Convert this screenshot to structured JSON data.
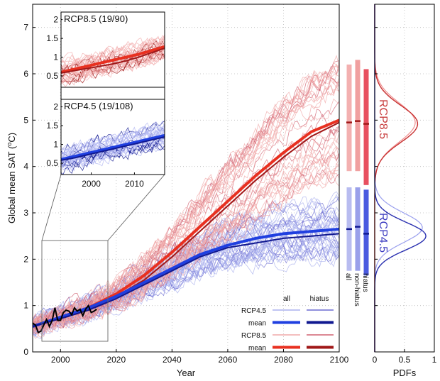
{
  "chart_data": {
    "type": "line",
    "main": {
      "xlabel": "Year",
      "ylabel_prefix": "Global mean SAT (",
      "ylabel_sup": "o",
      "ylabel_suffix": "C)",
      "xlim": [
        1990,
        2100
      ],
      "ylim": [
        0,
        7.5
      ],
      "xticks": [
        2000,
        2020,
        2040,
        2060,
        2080,
        2100
      ],
      "yticks": [
        0,
        1,
        2,
        3,
        4,
        5,
        6,
        7
      ],
      "grid": true,
      "observed": {
        "x": [
          1990,
          1991,
          1992,
          1993,
          1994,
          1995,
          1996,
          1997,
          1998,
          1999,
          2000,
          2001,
          2002,
          2003,
          2004,
          2005,
          2006,
          2007,
          2008,
          2009,
          2010,
          2011,
          2012,
          2013
        ],
        "y": [
          0.62,
          0.58,
          0.42,
          0.45,
          0.58,
          0.7,
          0.55,
          0.68,
          0.95,
          0.68,
          0.68,
          0.85,
          0.9,
          0.88,
          0.8,
          0.95,
          0.88,
          0.92,
          0.78,
          0.92,
          1.0,
          0.85,
          0.88,
          0.92
        ]
      },
      "series": [
        {
          "name": "RCP8.5",
          "stat": "mean",
          "x": [
            1990,
            2000,
            2010,
            2020,
            2030,
            2040,
            2050,
            2060,
            2070,
            2080,
            2090,
            2100
          ],
          "y": [
            0.55,
            0.75,
            0.95,
            1.25,
            1.65,
            2.15,
            2.7,
            3.25,
            3.8,
            4.3,
            4.75,
            5.0
          ]
        },
        {
          "name": "RCP8.5",
          "stat": "hiatus mean",
          "x": [
            1990,
            2000,
            2010,
            2020,
            2030,
            2040,
            2050,
            2060,
            2070,
            2080,
            2090,
            2100
          ],
          "y": [
            0.55,
            0.72,
            0.9,
            1.2,
            1.55,
            2.05,
            2.6,
            3.15,
            3.7,
            4.2,
            4.65,
            4.95
          ]
        },
        {
          "name": "RCP4.5",
          "stat": "mean",
          "x": [
            1990,
            2000,
            2010,
            2020,
            2030,
            2040,
            2050,
            2060,
            2070,
            2080,
            2090,
            2100
          ],
          "y": [
            0.55,
            0.75,
            0.95,
            1.2,
            1.5,
            1.8,
            2.1,
            2.3,
            2.45,
            2.55,
            2.6,
            2.65
          ]
        },
        {
          "name": "RCP4.5",
          "stat": "hiatus mean",
          "x": [
            1990,
            2000,
            2010,
            2020,
            2030,
            2040,
            2050,
            2060,
            2070,
            2080,
            2090,
            2100
          ],
          "y": [
            0.55,
            0.72,
            0.9,
            1.15,
            1.45,
            1.75,
            2.05,
            2.25,
            2.35,
            2.45,
            2.5,
            2.55
          ]
        }
      ]
    },
    "legend": {
      "col_all": "all",
      "col_hiatus": "hiatus",
      "rows": [
        {
          "label": "RCP4.5",
          "color_all": "#aab0ee",
          "color_hiatus": "#6a6ad0",
          "thick": false
        },
        {
          "label": "mean",
          "color_all": "#1f3fe0",
          "color_hiatus": "#101890",
          "thick": true
        },
        {
          "label": "RCP8.5",
          "color_all": "#f0a8a8",
          "color_hiatus": "#d06070",
          "thick": false
        },
        {
          "label": "mean",
          "color_all": "#e83020",
          "color_hiatus": "#a01818",
          "thick": true
        }
      ]
    },
    "insets": [
      {
        "title": "RCP8.5 (19/90)",
        "yticks": [
          0.5,
          1,
          1.5,
          2
        ],
        "ylim": [
          0.2,
          2.2
        ],
        "xlim": [
          1993,
          2017
        ],
        "mean_x": [
          1993,
          1996,
          1999,
          2002,
          2005,
          2008,
          2011,
          2014,
          2017
        ],
        "mean_y": [
          0.6,
          0.68,
          0.76,
          0.84,
          0.92,
          1.0,
          1.08,
          1.18,
          1.28
        ],
        "hiatus_x": [
          1993,
          1996,
          1999,
          2002,
          2005,
          2008,
          2011,
          2014,
          2017
        ],
        "hiatus_y": [
          0.58,
          0.64,
          0.7,
          0.76,
          0.82,
          0.9,
          1.0,
          1.12,
          1.24
        ],
        "color": "#e83020",
        "hiatus_color": "#a01818",
        "light": "#f3b0b0"
      },
      {
        "title": "RCP4.5 (19/108)",
        "yticks": [
          0.5,
          1,
          1.5,
          2
        ],
        "ylim": [
          0.2,
          2.2
        ],
        "xlim": [
          1993,
          2017
        ],
        "xticks": [
          2000,
          2010
        ],
        "mean_x": [
          1993,
          1996,
          1999,
          2002,
          2005,
          2008,
          2011,
          2014,
          2017
        ],
        "mean_y": [
          0.6,
          0.68,
          0.76,
          0.84,
          0.92,
          1.0,
          1.08,
          1.16,
          1.24
        ],
        "hiatus_x": [
          1993,
          1996,
          1999,
          2002,
          2005,
          2008,
          2011,
          2014,
          2017
        ],
        "hiatus_y": [
          0.58,
          0.64,
          0.72,
          0.8,
          0.88,
          0.96,
          1.04,
          1.12,
          1.2
        ],
        "color": "#1f3fe0",
        "hiatus_color": "#101890",
        "light": "#b3b8f2"
      }
    ],
    "bars": {
      "labels": [
        "all",
        "non-hiatus",
        "hiatus"
      ],
      "rcp85": [
        {
          "low": 3.9,
          "high": 6.2,
          "mean": 4.95,
          "color": "#f3b0b0"
        },
        {
          "low": 3.9,
          "high": 6.3,
          "mean": 4.98,
          "color": "#f0a0a0"
        },
        {
          "low": 3.6,
          "high": 6.1,
          "mean": 4.92,
          "color": "#e85060"
        }
      ],
      "rcp45": [
        {
          "low": 1.75,
          "high": 3.55,
          "mean": 2.65,
          "color": "#b8bcf0"
        },
        {
          "low": 1.75,
          "high": 3.55,
          "mean": 2.7,
          "color": "#9aa0ea"
        },
        {
          "low": 1.65,
          "high": 3.5,
          "mean": 2.55,
          "color": "#4a5ae0"
        }
      ]
    },
    "pdf": {
      "xlabel": "PDFs",
      "xticks": [
        0,
        0.5,
        1
      ],
      "xticklabels": [
        "0",
        "0.5",
        "1"
      ],
      "xlim": [
        0,
        1
      ],
      "rcp85_label": "RCP8.5",
      "rcp45_label": "RCP4.5",
      "rcp85_color": "#c83c3c",
      "rcp45_color": "#3c3cc0",
      "curves": [
        {
          "name": "RCP8.5",
          "mu": 4.95,
          "sigma": 0.42,
          "peak": 0.68,
          "color": "#f09090",
          "width": 1.2
        },
        {
          "name": "RCP8.5",
          "mu": 4.92,
          "sigma": 0.4,
          "peak": 0.72,
          "color": "#c83030",
          "width": 1.4
        },
        {
          "name": "RCP4.5",
          "mu": 2.68,
          "sigma": 0.32,
          "peak": 0.8,
          "color": "#9aa0ee",
          "width": 1.2
        },
        {
          "name": "RCP4.5",
          "mu": 2.5,
          "sigma": 0.3,
          "peak": 0.86,
          "color": "#2a30b0",
          "width": 1.4
        }
      ]
    }
  }
}
